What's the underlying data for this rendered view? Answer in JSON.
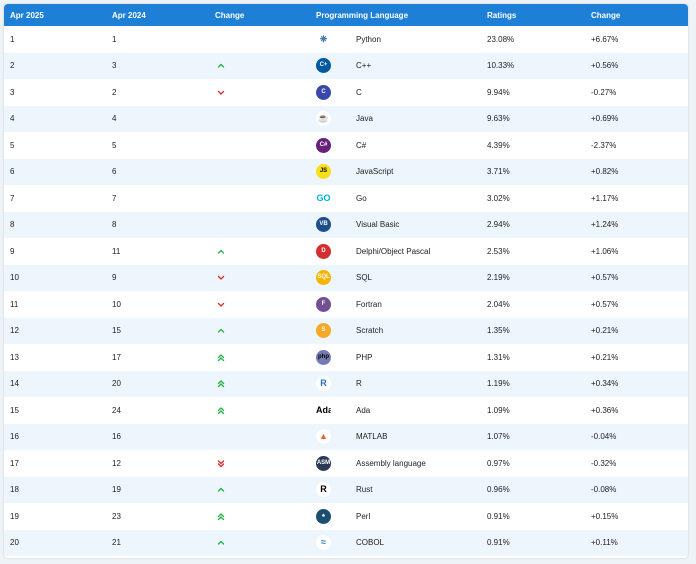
{
  "header": {
    "col1": "Apr 2025",
    "col2": "Apr 2024",
    "col3": "Change",
    "col4": "Programming Language",
    "col5": "Ratings",
    "col6": "Change"
  },
  "rows": [
    {
      "rank2025": "1",
      "rank2024": "1",
      "trend": "none",
      "language": "Python",
      "ratings": "23.08%",
      "change": "+6.67%",
      "icon": "python-icon"
    },
    {
      "rank2025": "2",
      "rank2024": "3",
      "trend": "up",
      "language": "C++",
      "ratings": "10.33%",
      "change": "+0.56%",
      "icon": "cpp-icon"
    },
    {
      "rank2025": "3",
      "rank2024": "2",
      "trend": "down",
      "language": "C",
      "ratings": "9.94%",
      "change": "-0.27%",
      "icon": "c-icon"
    },
    {
      "rank2025": "4",
      "rank2024": "4",
      "trend": "none",
      "language": "Java",
      "ratings": "9.63%",
      "change": "+0.69%",
      "icon": "java-icon"
    },
    {
      "rank2025": "5",
      "rank2024": "5",
      "trend": "none",
      "language": "C#",
      "ratings": "4.39%",
      "change": "-2.37%",
      "icon": "csharp-icon"
    },
    {
      "rank2025": "6",
      "rank2024": "6",
      "trend": "none",
      "language": "JavaScript",
      "ratings": "3.71%",
      "change": "+0.82%",
      "icon": "javascript-icon"
    },
    {
      "rank2025": "7",
      "rank2024": "7",
      "trend": "none",
      "language": "Go",
      "ratings": "3.02%",
      "change": "+1.17%",
      "icon": "go-icon"
    },
    {
      "rank2025": "8",
      "rank2024": "8",
      "trend": "none",
      "language": "Visual Basic",
      "ratings": "2.94%",
      "change": "+1.24%",
      "icon": "visual-basic-icon"
    },
    {
      "rank2025": "9",
      "rank2024": "11",
      "trend": "up",
      "language": "Delphi/Object Pascal",
      "ratings": "2.53%",
      "change": "+1.06%",
      "icon": "delphi-icon"
    },
    {
      "rank2025": "10",
      "rank2024": "9",
      "trend": "down",
      "language": "SQL",
      "ratings": "2.19%",
      "change": "+0.57%",
      "icon": "sql-icon"
    },
    {
      "rank2025": "11",
      "rank2024": "10",
      "trend": "down",
      "language": "Fortran",
      "ratings": "2.04%",
      "change": "+0.57%",
      "icon": "fortran-icon"
    },
    {
      "rank2025": "12",
      "rank2024": "15",
      "trend": "up",
      "language": "Scratch",
      "ratings": "1.35%",
      "change": "+0.21%",
      "icon": "scratch-icon"
    },
    {
      "rank2025": "13",
      "rank2024": "17",
      "trend": "up2",
      "language": "PHP",
      "ratings": "1.31%",
      "change": "+0.21%",
      "icon": "php-icon"
    },
    {
      "rank2025": "14",
      "rank2024": "20",
      "trend": "up2",
      "language": "R",
      "ratings": "1.19%",
      "change": "+0.34%",
      "icon": "r-icon"
    },
    {
      "rank2025": "15",
      "rank2024": "24",
      "trend": "up2",
      "language": "Ada",
      "ratings": "1.09%",
      "change": "+0.36%",
      "icon": "ada-icon"
    },
    {
      "rank2025": "16",
      "rank2024": "16",
      "trend": "none",
      "language": "MATLAB",
      "ratings": "1.07%",
      "change": "-0.04%",
      "icon": "matlab-icon"
    },
    {
      "rank2025": "17",
      "rank2024": "12",
      "trend": "down2",
      "language": "Assembly language",
      "ratings": "0.97%",
      "change": "-0.32%",
      "icon": "assembly-icon"
    },
    {
      "rank2025": "18",
      "rank2024": "19",
      "trend": "up",
      "language": "Rust",
      "ratings": "0.96%",
      "change": "-0.08%",
      "icon": "rust-icon"
    },
    {
      "rank2025": "19",
      "rank2024": "23",
      "trend": "up2",
      "language": "Perl",
      "ratings": "0.91%",
      "change": "+0.15%",
      "icon": "perl-icon"
    },
    {
      "rank2025": "20",
      "rank2024": "21",
      "trend": "up",
      "language": "COBOL",
      "ratings": "0.91%",
      "change": "+0.11%",
      "icon": "cobol-icon"
    }
  ],
  "icons": {
    "python-icon": {
      "bg": "#ffffff",
      "fg": "#3572a5",
      "glyph": "❈"
    },
    "cpp-icon": {
      "bg": "#00599c",
      "fg": "#ffffff",
      "glyph": "C+"
    },
    "c-icon": {
      "bg": "#3949ab",
      "fg": "#ffffff",
      "glyph": "C"
    },
    "java-icon": {
      "bg": "#ffffff",
      "fg": "#e76f00",
      "glyph": "☕"
    },
    "csharp-icon": {
      "bg": "#68217a",
      "fg": "#ffffff",
      "glyph": "C#"
    },
    "javascript-icon": {
      "bg": "#f7df1e",
      "fg": "#000000",
      "glyph": "JS"
    },
    "go-icon": {
      "bg": "#ffffff",
      "fg": "#00add8",
      "glyph": "GO"
    },
    "visual-basic-icon": {
      "bg": "#1e4e8c",
      "fg": "#ffffff",
      "glyph": "VB"
    },
    "delphi-icon": {
      "bg": "#d32f2f",
      "fg": "#ffffff",
      "glyph": "D"
    },
    "sql-icon": {
      "bg": "#f5b400",
      "fg": "#ffffff",
      "glyph": "SQL"
    },
    "fortran-icon": {
      "bg": "#734f96",
      "fg": "#ffffff",
      "glyph": "F"
    },
    "scratch-icon": {
      "bg": "#f9a825",
      "fg": "#ffffff",
      "glyph": "S"
    },
    "php-icon": {
      "bg": "#777bb4",
      "fg": "#000000",
      "glyph": "php"
    },
    "r-icon": {
      "bg": "#ffffff",
      "fg": "#276dc3",
      "glyph": "R"
    },
    "ada-icon": {
      "bg": "#ffffff",
      "fg": "#000000",
      "glyph": "Ada"
    },
    "matlab-icon": {
      "bg": "#ffffff",
      "fg": "#e16737",
      "glyph": "▲"
    },
    "assembly-icon": {
      "bg": "#2b3a55",
      "fg": "#ffffff",
      "glyph": "ASM"
    },
    "rust-icon": {
      "bg": "#ffffff",
      "fg": "#000000",
      "glyph": "R"
    },
    "perl-icon": {
      "bg": "#1b4f72",
      "fg": "#ffffff",
      "glyph": "♠"
    },
    "cobol-icon": {
      "bg": "#ffffff",
      "fg": "#1e6fb8",
      "glyph": "≈"
    }
  },
  "colors": {
    "header_bg": "#1e7fd6",
    "row_alt": "#edf5fd",
    "up": "#2bb24c",
    "down": "#d9302c"
  }
}
